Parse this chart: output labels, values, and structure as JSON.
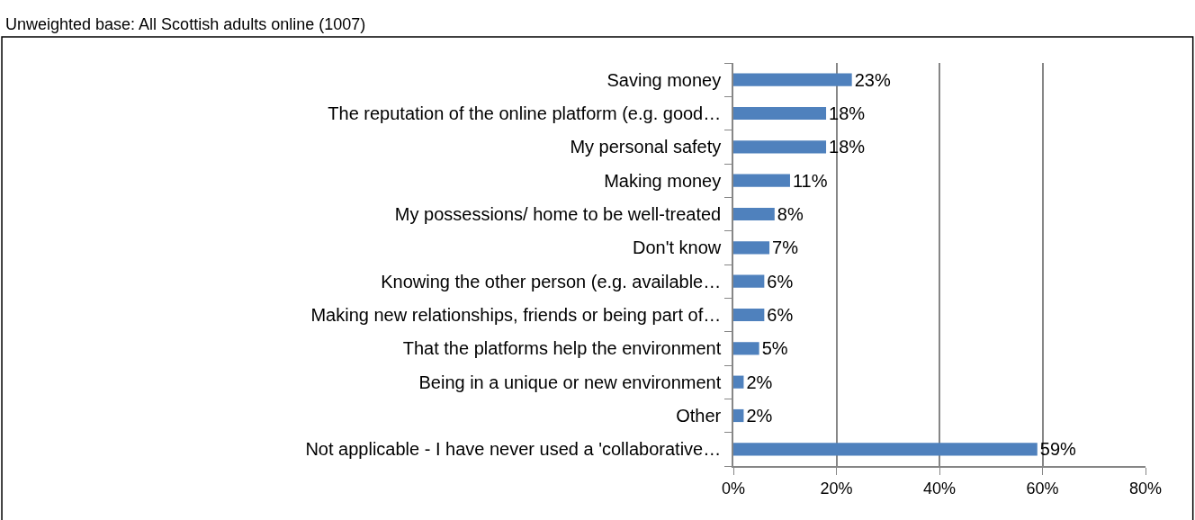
{
  "chart_data": {
    "type": "bar",
    "orientation": "horizontal",
    "annotations": [
      "Unweighted base: All Scottish adults online (1007)"
    ],
    "categories": [
      "Saving money",
      "The reputation of the online platform (e.g. good…",
      "My personal safety",
      "Making money",
      "My possessions/ home to be well-treated",
      "Don't know",
      "Knowing the other person (e.g. available…",
      "Making new relationships, friends or being part of…",
      "That the platforms help the environment",
      "Being in a unique or new environment",
      "Other",
      "Not applicable - I have never used a 'collaborative…"
    ],
    "values": [
      23,
      18,
      18,
      11,
      8,
      7,
      6,
      6,
      5,
      2,
      2,
      59
    ],
    "value_labels": [
      "23%",
      "18%",
      "18%",
      "11%",
      "8%",
      "7%",
      "6%",
      "6%",
      "5%",
      "2%",
      "2%",
      "59%"
    ],
    "color": "#4f81bd",
    "xlim": [
      0,
      80
    ],
    "xticks": [
      {
        "value": 0,
        "label": "0%"
      },
      {
        "value": 20,
        "label": "20%"
      },
      {
        "value": 40,
        "label": "40%"
      },
      {
        "value": 60,
        "label": "60%"
      },
      {
        "value": 80,
        "label": "80%"
      }
    ],
    "grid": "x",
    "legend": false
  }
}
